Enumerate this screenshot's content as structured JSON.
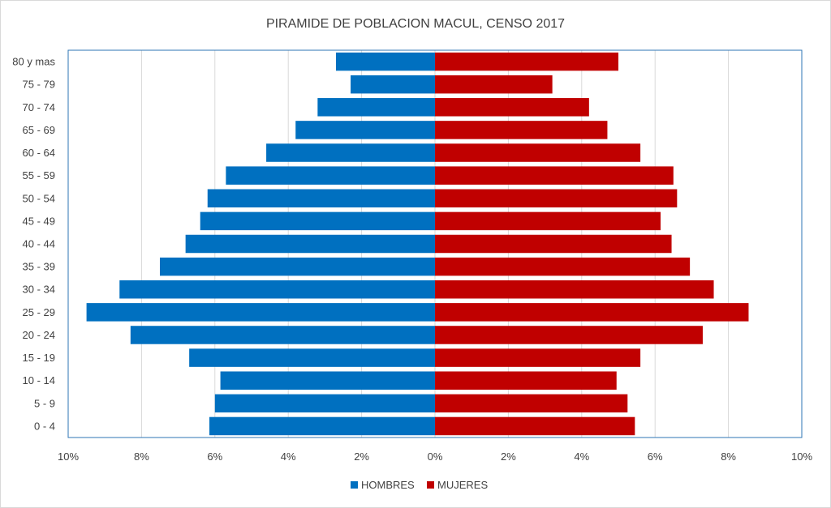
{
  "chart_data": {
    "type": "bar",
    "orientation": "horizontal",
    "title": "PIRAMIDE DE POBLACION MACUL, CENSO 2017",
    "xlabel": "",
    "ylabel": "",
    "xlim": [
      -10,
      10
    ],
    "x_ticks": [
      "10%",
      "8%",
      "6%",
      "4%",
      "2%",
      "0%",
      "2%",
      "4%",
      "6%",
      "8%",
      "10%"
    ],
    "grid": true,
    "legend_position": "bottom",
    "categories": [
      "80 y mas",
      "75 - 79",
      "70 - 74",
      "65 - 69",
      "60 - 64",
      "55 - 59",
      "50 - 54",
      "45 - 49",
      "40 - 44",
      "35 - 39",
      "30 - 34",
      "25 - 29",
      "20 - 24",
      "15 - 19",
      "10 - 14",
      "5 - 9",
      "0 - 4"
    ],
    "series": [
      {
        "name": "HOMBRES",
        "color": "#0070c0",
        "direction": "left",
        "values": [
          2.7,
          2.3,
          3.2,
          3.8,
          4.6,
          5.7,
          6.2,
          6.4,
          6.8,
          7.5,
          8.6,
          9.5,
          8.3,
          6.7,
          5.85,
          6.0,
          6.15
        ]
      },
      {
        "name": "MUJERES",
        "color": "#c00000",
        "direction": "right",
        "values": [
          5.0,
          3.2,
          4.2,
          4.7,
          5.6,
          6.5,
          6.6,
          6.15,
          6.45,
          6.95,
          7.6,
          8.55,
          7.3,
          5.6,
          4.95,
          5.25,
          5.45
        ]
      }
    ]
  }
}
